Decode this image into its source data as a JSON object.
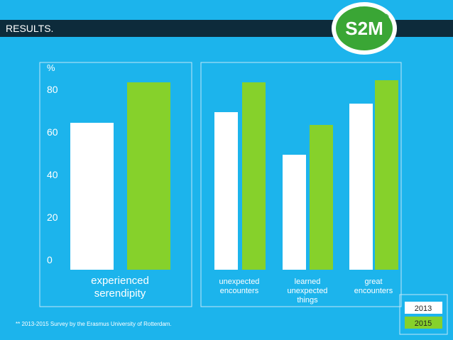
{
  "header": {
    "title": "RESULTS.",
    "logo": "S2M"
  },
  "chart_data": {
    "type": "bar",
    "y_label": "%",
    "categories": [
      "experienced serendipity",
      "unexpected encounters",
      "learned unexpected things",
      "great encounters"
    ],
    "series": [
      {
        "name": "2013",
        "color": "#ffffff",
        "values": [
          69,
          74,
          54,
          78
        ]
      },
      {
        "name": "2015",
        "color": "#86d12b",
        "values": [
          88,
          88,
          68,
          89
        ]
      }
    ],
    "ylim": [
      0,
      90
    ],
    "yticks": [
      0,
      20,
      40,
      60,
      80
    ],
    "grid": false
  },
  "footnote": "** 2013-2015 Survey by the Erasmus University of Rotterdam."
}
